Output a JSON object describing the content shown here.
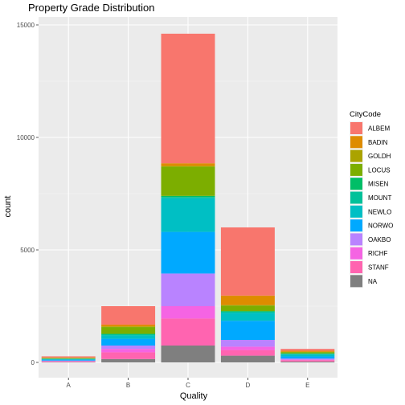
{
  "chart_data": {
    "type": "bar",
    "stacked": true,
    "title": "Property Grade Distribution",
    "xlabel": "Quality",
    "ylabel": "count",
    "ylim": [
      0,
      15600
    ],
    "yticks": [
      0,
      5000,
      10000,
      15000
    ],
    "categories": [
      "A",
      "B",
      "C",
      "D",
      "E"
    ],
    "legend": {
      "title": "CityCode",
      "position": "right"
    },
    "grid": true,
    "series": [
      {
        "name": "NA",
        "color": "#7F7F7F",
        "values": [
          20,
          150,
          750,
          300,
          40
        ]
      },
      {
        "name": "STANF",
        "color": "#FF64B0",
        "values": [
          30,
          300,
          1200,
          250,
          60
        ]
      },
      {
        "name": "RICHF",
        "color": "#F564E3",
        "values": [
          10,
          150,
          550,
          150,
          20
        ]
      },
      {
        "name": "OAKBO",
        "color": "#B983FF",
        "values": [
          20,
          150,
          1450,
          300,
          50
        ]
      },
      {
        "name": "NORWO",
        "color": "#00A9FF",
        "values": [
          40,
          300,
          1850,
          850,
          100
        ]
      },
      {
        "name": "NEWLO",
        "color": "#00BFC4",
        "values": [
          30,
          150,
          1500,
          350,
          80
        ]
      },
      {
        "name": "MOUNT",
        "color": "#00C19A",
        "values": [
          10,
          50,
          50,
          50,
          40
        ]
      },
      {
        "name": "MISEN",
        "color": "#00BE67",
        "values": [
          10,
          20,
          50,
          30,
          10
        ]
      },
      {
        "name": "LOCUS",
        "color": "#7CAE00",
        "values": [
          20,
          300,
          1300,
          250,
          60
        ]
      },
      {
        "name": "GOLDH",
        "color": "#ABA300",
        "values": [
          10,
          30,
          30,
          20,
          10
        ]
      },
      {
        "name": "BADIN",
        "color": "#DE8C00",
        "values": [
          20,
          80,
          120,
          420,
          50
        ]
      },
      {
        "name": "ALBEM",
        "color": "#F8766D",
        "values": [
          50,
          820,
          5760,
          3030,
          80
        ]
      }
    ],
    "legend_order": [
      "ALBEM",
      "BADIN",
      "GOLDH",
      "LOCUS",
      "MISEN",
      "MOUNT",
      "NEWLO",
      "NORWO",
      "OAKBO",
      "RICHF",
      "STANF",
      "NA"
    ]
  }
}
